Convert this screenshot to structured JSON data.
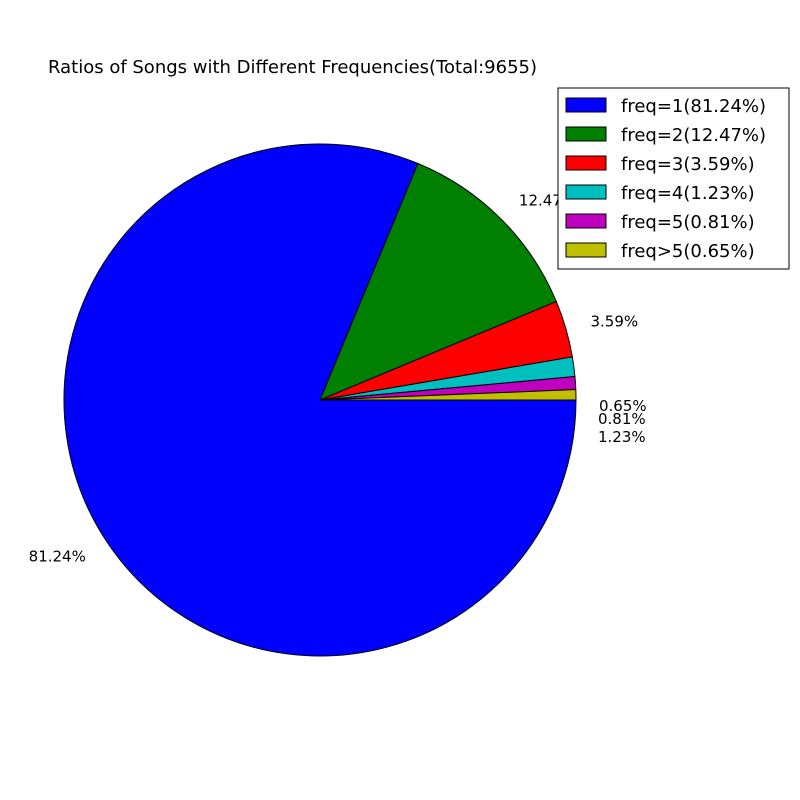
{
  "chart_data": {
    "type": "pie",
    "title": "Ratios of Songs with Different Frequencies(Total:9655)",
    "total": 9655,
    "start_angle_deg": 0,
    "direction": "clockwise",
    "slices": [
      {
        "category": "freq=1",
        "value": 81.24,
        "label": "81.24%",
        "legend": "freq=1(81.24%)",
        "color": "#0000ff"
      },
      {
        "category": "freq=2",
        "value": 12.47,
        "label": "12.47%",
        "legend": "freq=2(12.47%)",
        "color": "#008000"
      },
      {
        "category": "freq=3",
        "value": 3.59,
        "label": "3.59%",
        "legend": "freq=3(3.59%)",
        "color": "#ff0000"
      },
      {
        "category": "freq=4",
        "value": 1.23,
        "label": "1.23%",
        "legend": "freq=4(1.23%)",
        "color": "#00bfbf"
      },
      {
        "category": "freq=5",
        "value": 0.81,
        "label": "0.81%",
        "legend": "freq=5(0.81%)",
        "color": "#bf00bf"
      },
      {
        "category": "freq>5",
        "value": 0.65,
        "label": "0.65%",
        "legend": "freq>5(0.65%)",
        "color": "#bfbf00"
      }
    ],
    "legend_position": "top-right"
  }
}
